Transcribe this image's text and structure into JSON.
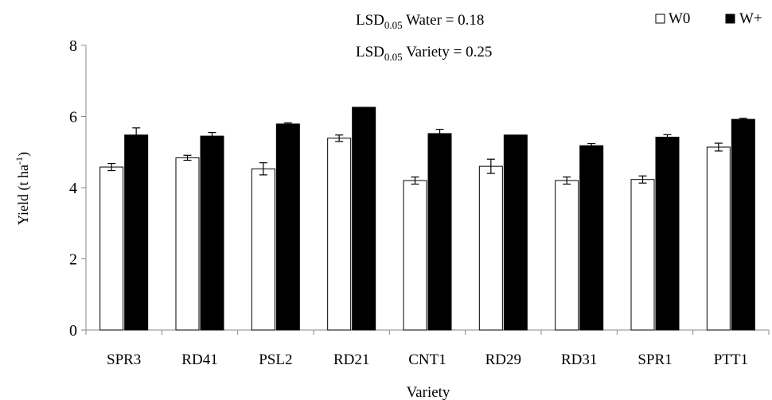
{
  "chart_data": {
    "type": "bar",
    "categories": [
      "SPR3",
      "RD41",
      "PSL2",
      "RD21",
      "CNT1",
      "RD29",
      "RD31",
      "SPR1",
      "PTT1"
    ],
    "series": [
      {
        "name": "W0",
        "color": "#ffffff",
        "values": [
          4.58,
          4.84,
          4.53,
          5.39,
          4.2,
          4.6,
          4.2,
          4.23,
          5.14
        ],
        "errors": [
          0.1,
          0.07,
          0.17,
          0.09,
          0.1,
          0.2,
          0.1,
          0.1,
          0.11
        ]
      },
      {
        "name": "W+",
        "color": "#000000",
        "values": [
          5.48,
          5.45,
          5.79,
          6.26,
          5.52,
          5.48,
          5.18,
          5.42,
          5.92
        ],
        "errors": [
          0.2,
          0.1,
          0.03,
          0.0,
          0.12,
          0.0,
          0.06,
          0.07,
          0.03
        ]
      }
    ],
    "xlabel": "Variety",
    "ylabel_main": "Yield (t ha",
    "ylabel_sup": "-1",
    "ylabel_close": ")",
    "ylim": [
      0,
      8
    ],
    "yticks": [
      0,
      2,
      4,
      6,
      8
    ],
    "legend_position": "top-right",
    "grid": false
  },
  "annotations": {
    "lsd_water": {
      "prefix": "LSD",
      "sub": "0.05",
      "rest": " Water = 0.18"
    },
    "lsd_variety": {
      "prefix": "LSD",
      "sub": "0.05",
      "rest": " Variety =  0.25"
    }
  }
}
